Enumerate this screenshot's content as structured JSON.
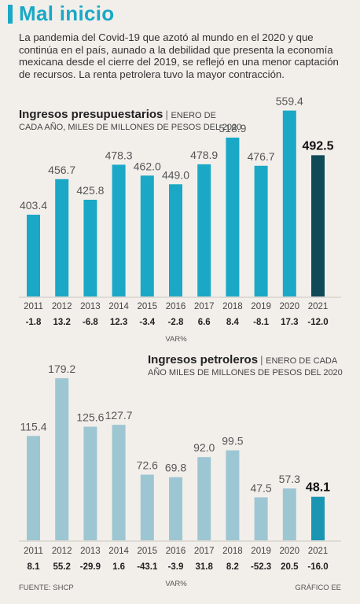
{
  "headline": "Mal inicio",
  "intro": "La pandemia del Covid-19 que azotó al mundo en el 2020 y que continúa en el país, aunado a la debilidad que presenta la economía mexicana desde el cierre del 2019, se reflejó en una menor captación de recursos. La renta petrolera tuvo la mayor contracción.",
  "source": "FUENTE: SHCP",
  "credit": "GRÁFICO EE",
  "colors": {
    "bar1": "#1aa8c6",
    "bar1_highlight": "#0e4a58",
    "bar2": "#9dc6d3",
    "bar2_highlight": "#1a95b2"
  },
  "chart_data": [
    {
      "type": "bar",
      "title": "Ingresos presupuestarios",
      "subtitle_line1": "ENERO DE",
      "subtitle_line2": "CADA AÑO, MILES DE MILLONES DE PESOS DEL 2020",
      "categories": [
        "2011",
        "2012",
        "2013",
        "2014",
        "2015",
        "2016",
        "2017",
        "2018",
        "2019",
        "2020",
        "2021"
      ],
      "values": [
        403.4,
        456.7,
        425.8,
        478.3,
        462.0,
        449.0,
        478.9,
        518.9,
        476.7,
        559.4,
        492.5
      ],
      "value_labels": [
        "403.4",
        "456.7",
        "425.8",
        "478.3",
        "462.0",
        "449.0",
        "478.9",
        "518.9",
        "476.7",
        "559.4",
        "492.5"
      ],
      "var_label": "VAR%",
      "var": [
        "-1.8",
        "13.2",
        "-6.8",
        "12.3",
        "-3.4",
        "-2.8",
        "6.6",
        "8.4",
        "-8.1",
        "17.3",
        "-12.0"
      ],
      "highlight_index": 10
    },
    {
      "type": "bar",
      "title": "Ingresos petroleros",
      "subtitle_line1": "ENERO DE CADA",
      "subtitle_line2": "AÑO MILES DE MILLONES DE PESOS DEL 2020",
      "categories": [
        "2011",
        "2012",
        "2013",
        "2014",
        "2015",
        "2016",
        "2017",
        "2018",
        "2019",
        "2020",
        "2021"
      ],
      "values": [
        115.4,
        179.2,
        125.6,
        127.7,
        72.6,
        69.8,
        92.0,
        99.5,
        47.5,
        57.3,
        48.1
      ],
      "value_labels": [
        "115.4",
        "179.2",
        "125.6",
        "127.7",
        "72.6",
        "69.8",
        "92.0",
        "99.5",
        "47.5",
        "57.3",
        "48.1"
      ],
      "var_label": "VAR%",
      "var": [
        "8.1",
        "55.2",
        "-29.9",
        "1.6",
        "-43.1",
        "-3.9",
        "31.8",
        "8.2",
        "-52.3",
        "20.5",
        "-16.0"
      ],
      "highlight_index": 10
    }
  ]
}
